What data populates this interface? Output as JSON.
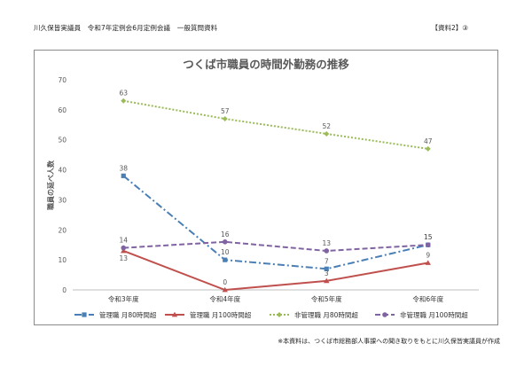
{
  "header": {
    "left": "川久保皆実議員　令和7年定例会6月定例会議　一般質問資料",
    "right": "【資料2】③"
  },
  "footnote": "※本資料は、つくば市総務部人事課への聞き取りをもとに川久保皆実議員が作成",
  "chart_data": {
    "type": "line",
    "title": "つくば市職員の時間外勤務の推移",
    "ylabel": "職員の延べ人数",
    "xlabel": "",
    "categories": [
      "令和3年度",
      "令和4年度",
      "令和5年度",
      "令和6年度"
    ],
    "ylim": [
      0,
      70
    ],
    "yticks": [
      "0",
      "10",
      "20",
      "30",
      "40",
      "50",
      "60",
      "70"
    ],
    "grid": false,
    "legend_position": "bottom",
    "series": [
      {
        "name": "管理職 月80時間超",
        "values": [
          38,
          10,
          7,
          15
        ],
        "color": "#4a7fb5",
        "dash": "8,3,2,3",
        "marker": "square"
      },
      {
        "name": "管理職 月100時間超",
        "values": [
          13,
          0,
          3,
          9
        ],
        "color": "#c0504d",
        "dash": "",
        "marker": "triangle"
      },
      {
        "name": "非管理職 月80時間超",
        "values": [
          63,
          57,
          52,
          47
        ],
        "color": "#9bbb59",
        "dash": "2,2",
        "marker": "diamond"
      },
      {
        "name": "非管理職 月100時間超",
        "values": [
          14,
          16,
          13,
          15
        ],
        "color": "#8064a2",
        "dash": "6,3",
        "marker": "circle"
      }
    ]
  }
}
